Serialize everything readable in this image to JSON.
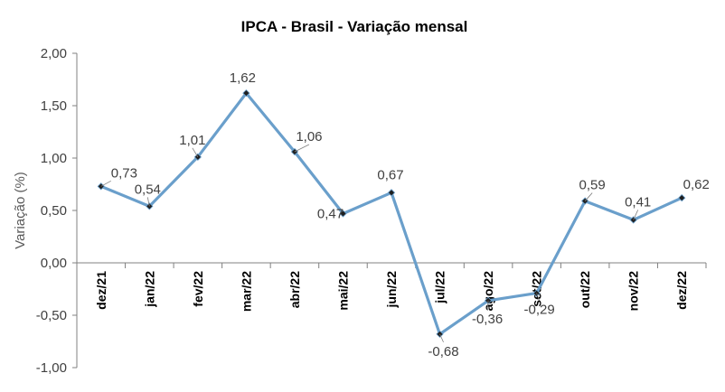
{
  "chart_data": {
    "type": "line",
    "title": "IPCA - Brasil - Variação mensal",
    "ylabel": "Variação (%)",
    "xlabel": "",
    "ylim": [
      -1.0,
      2.0
    ],
    "yticks": [
      "2,00",
      "1,50",
      "1,00",
      "0,50",
      "0,00",
      "-0,50",
      "-1,00"
    ],
    "ytick_values": [
      2.0,
      1.5,
      1.0,
      0.5,
      0.0,
      -0.5,
      -1.0
    ],
    "categories": [
      "dez/21",
      "jan/22",
      "fev/22",
      "mar/22",
      "abr/22",
      "mai/22",
      "jun/22",
      "jul/22",
      "ago/22",
      "set/22",
      "out/22",
      "nov/22",
      "dez/22"
    ],
    "values": [
      0.73,
      0.54,
      1.01,
      1.62,
      1.06,
      0.47,
      0.67,
      -0.68,
      -0.36,
      -0.29,
      0.59,
      0.41,
      0.62
    ],
    "value_labels": [
      "0,73",
      "0,54",
      "1,01",
      "1,62",
      "1,06",
      "0,47",
      "0,67",
      "-0,68",
      "-0,36",
      "-0,29",
      "0,59",
      "0,41",
      "0,62"
    ],
    "grid": false,
    "legend": "none",
    "line_color": "#6a9fcb",
    "marker_color": "#1f1f1f"
  }
}
